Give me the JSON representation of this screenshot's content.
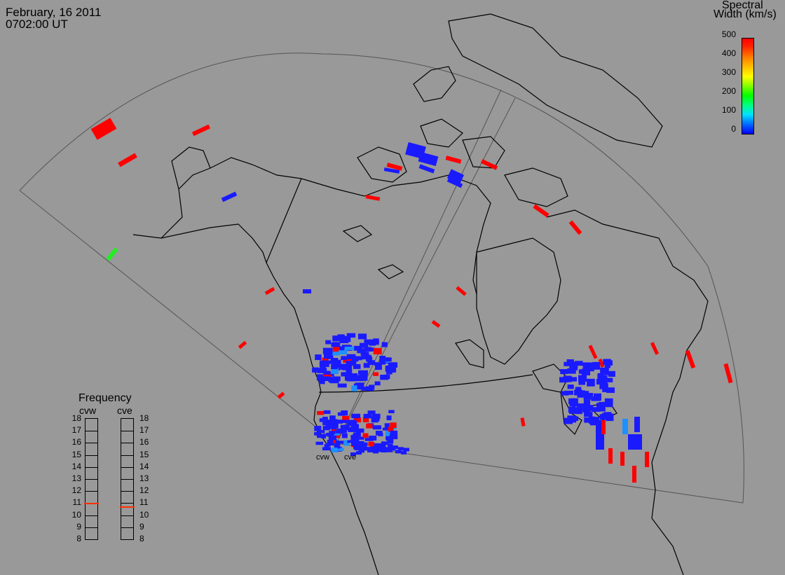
{
  "header": {
    "date": "February, 16 2011",
    "time": "0702:00 UT"
  },
  "colorbar": {
    "title_line1": "Spectral",
    "title_line2": "Width (km/s)",
    "ticks": [
      "500",
      "400",
      "300",
      "200",
      "100",
      "0"
    ]
  },
  "frequency_panel": {
    "title": "Frequency",
    "radars": [
      {
        "name": "cvw",
        "frequency": 10.9
      },
      {
        "name": "cve",
        "frequency": 10.6
      }
    ],
    "ticks": [
      "18",
      "17",
      "16",
      "15",
      "14",
      "13",
      "12",
      "11",
      "10",
      "9",
      "8"
    ],
    "range": [
      8,
      18
    ]
  },
  "radar_sites": {
    "west_label": "cvw",
    "east_label": "cve"
  },
  "colors": {
    "background": "#999999",
    "coastline": "#000000",
    "fov_outline": "#555555",
    "scale_low": "#0000ff",
    "scale_high": "#ff0000",
    "frequency_marker": "#ff3000"
  }
}
